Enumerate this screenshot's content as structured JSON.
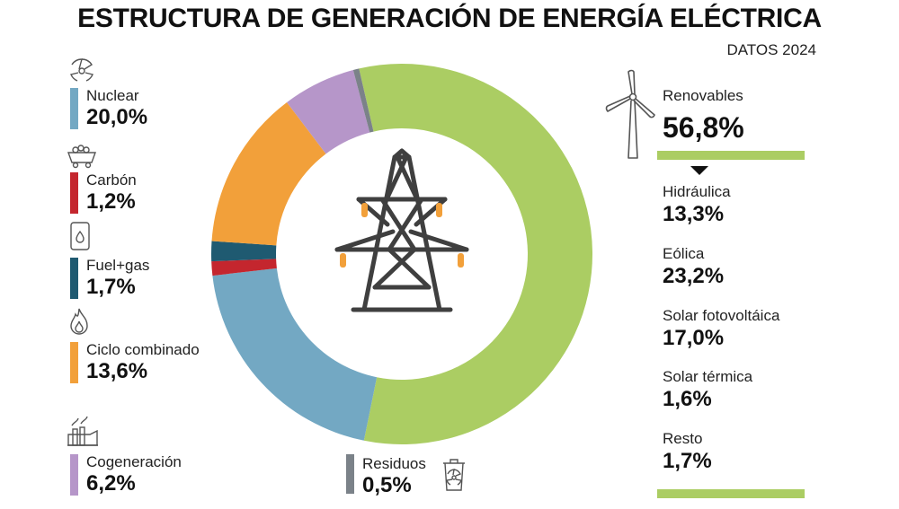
{
  "title": "ESTRUCTURA DE GENERACIÓN DE ENERGÍA ELÉCTRICA",
  "subtitle": "DATOS 2024",
  "chart_data": {
    "type": "pie",
    "title": "ESTRUCTURA DE GENERACIÓN DE ENERGÍA ELÉCTRICA",
    "subtitle": "DATOS 2024",
    "categories": [
      "Renovables",
      "Nuclear",
      "Carbón",
      "Fuel+gas",
      "Ciclo combinado",
      "Cogeneración",
      "Residuos"
    ],
    "values": [
      56.8,
      20.0,
      1.2,
      1.7,
      13.6,
      6.2,
      0.5
    ],
    "colors": [
      "#abcd63",
      "#73a8c3",
      "#c4262e",
      "#1f5a71",
      "#f2a03a",
      "#b696c9",
      "#7b8289"
    ],
    "renovables_breakdown": {
      "label": "Renovables",
      "value_label": "56,8%",
      "items": [
        {
          "label": "Hidráulica",
          "value": 13.3,
          "value_label": "13,3%"
        },
        {
          "label": "Eólica",
          "value": 23.2,
          "value_label": "23,2%"
        },
        {
          "label": "Solar fotovoltáica",
          "value": 17.0,
          "value_label": "17,0%"
        },
        {
          "label": "Solar térmica",
          "value": 1.6,
          "value_label": "1,6%"
        },
        {
          "label": "Resto",
          "value": 1.7,
          "value_label": "1,7%"
        }
      ]
    },
    "legend": [
      {
        "label": "Nuclear",
        "value_label": "20,0%",
        "color": "#73a8c3",
        "icon": "radiation-icon"
      },
      {
        "label": "Carbón",
        "value_label": "1,2%",
        "color": "#c4262e",
        "icon": "coal-cart-icon"
      },
      {
        "label": "Fuel+gas",
        "value_label": "1,7%",
        "color": "#1f5a71",
        "icon": "fuel-barrel-icon"
      },
      {
        "label": "Ciclo combinado",
        "value_label": "13,6%",
        "color": "#f2a03a",
        "icon": "flame-icon"
      },
      {
        "label": "Cogeneración",
        "value_label": "6,2%",
        "color": "#b696c9",
        "icon": "factory-icon"
      },
      {
        "label": "Residuos",
        "value_label": "0,5%",
        "color": "#7b8289",
        "icon": "waste-bin-icon"
      }
    ]
  },
  "icons": {
    "center": "power-tower-icon",
    "renovables": "wind-turbine-icon"
  }
}
